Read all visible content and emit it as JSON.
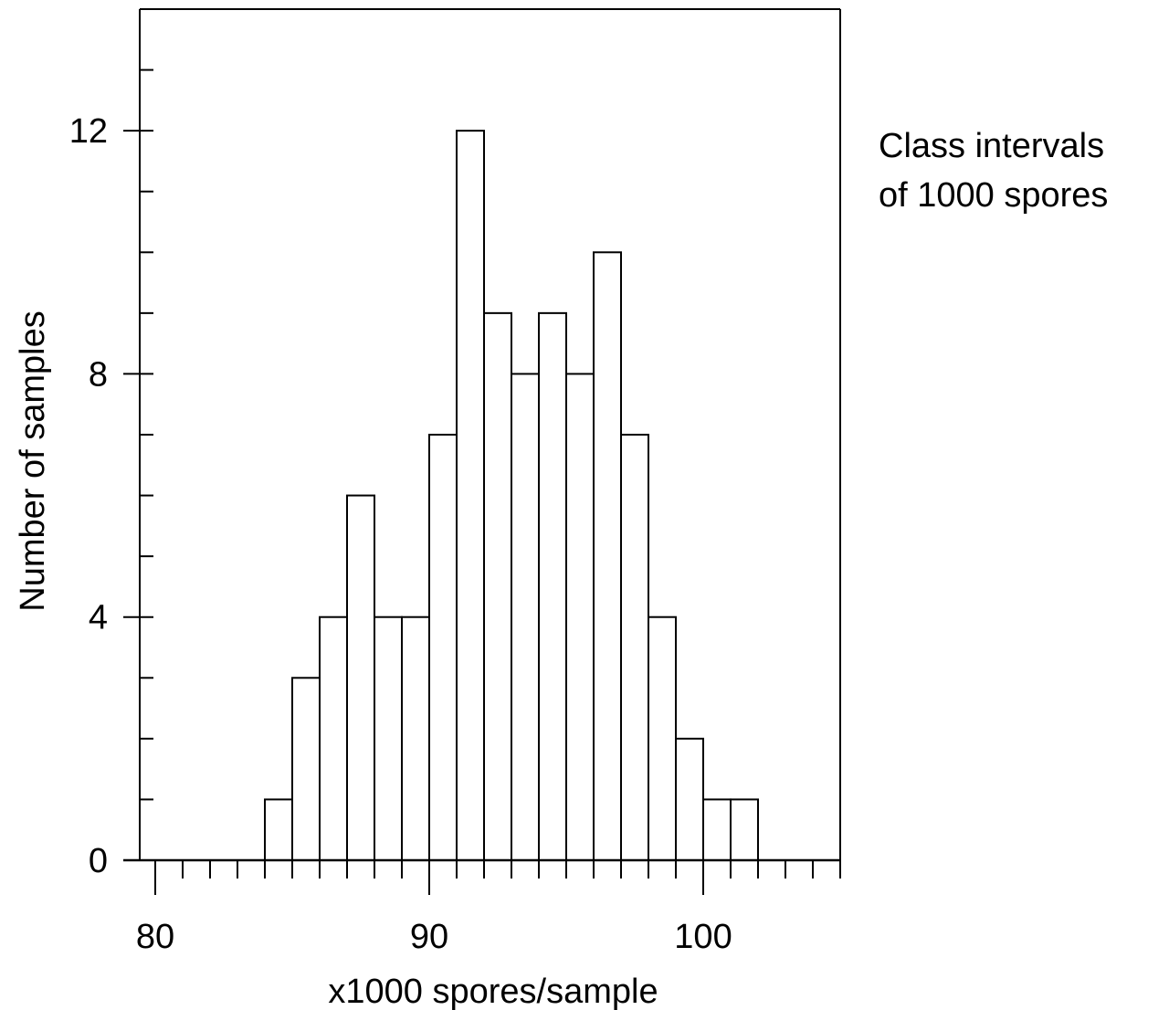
{
  "chart_data": {
    "type": "bar",
    "xlabel": "x1000 spores/sample",
    "ylabel": "Number of samples",
    "annotation": [
      "Class intervals",
      "of 1000 spores"
    ],
    "xlim": [
      80,
      105
    ],
    "ylim": [
      0,
      14
    ],
    "x_ticks": [
      80,
      90,
      100
    ],
    "y_ticks": [
      0,
      4,
      8,
      12
    ],
    "bin_width": 1,
    "bins": [
      {
        "start": 84,
        "value": 1
      },
      {
        "start": 85,
        "value": 3
      },
      {
        "start": 86,
        "value": 4
      },
      {
        "start": 87,
        "value": 6
      },
      {
        "start": 88,
        "value": 4
      },
      {
        "start": 89,
        "value": 4
      },
      {
        "start": 90,
        "value": 7
      },
      {
        "start": 91,
        "value": 12
      },
      {
        "start": 92,
        "value": 9
      },
      {
        "start": 93,
        "value": 8
      },
      {
        "start": 94,
        "value": 9
      },
      {
        "start": 95,
        "value": 8
      },
      {
        "start": 96,
        "value": 10
      },
      {
        "start": 97,
        "value": 7
      },
      {
        "start": 98,
        "value": 4
      },
      {
        "start": 99,
        "value": 2
      },
      {
        "start": 100,
        "value": 1
      },
      {
        "start": 101,
        "value": 1
      }
    ]
  }
}
